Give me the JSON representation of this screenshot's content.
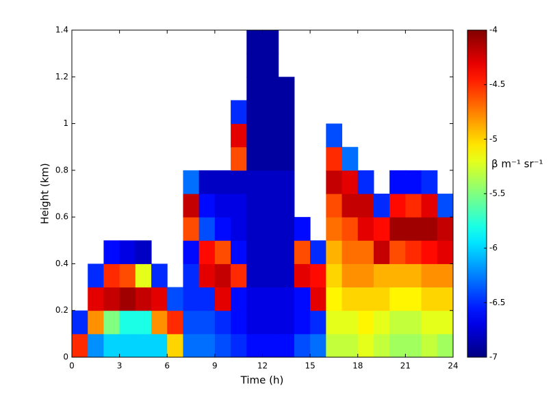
{
  "chart_data": {
    "type": "heatmap",
    "xlabel": "Time (h)",
    "ylabel": "Height (km)",
    "colorbar_label": "β m⁻¹ sr⁻¹",
    "x_bins": [
      0,
      1,
      2,
      3,
      4,
      5,
      6,
      7,
      8,
      9,
      10,
      11,
      12,
      13,
      14,
      15,
      16,
      17,
      18,
      19,
      20,
      21,
      22,
      23,
      24
    ],
    "y_bins": [
      0,
      0.1,
      0.2,
      0.3,
      0.4,
      0.5,
      0.6,
      0.7,
      0.8,
      0.9,
      1.0,
      1.1,
      1.2,
      1.3,
      1.4
    ],
    "xlim": [
      0,
      24
    ],
    "xticks": [
      0,
      3,
      6,
      9,
      12,
      15,
      18,
      21,
      24
    ],
    "ylim": [
      0,
      1.4
    ],
    "yticks": [
      0,
      0.2,
      0.4,
      0.6,
      0.8,
      1,
      1.2,
      1.4
    ],
    "clim": [
      -7,
      -4
    ],
    "cticks": [
      -7,
      -6.5,
      -6,
      -5.5,
      -5,
      -4.5,
      -4
    ],
    "colormap": "jet",
    "z": [
      [
        -4.5,
        -6.5,
        null,
        null,
        null,
        null,
        null,
        null,
        null,
        null,
        null,
        null,
        null,
        null
      ],
      [
        -6.2,
        -4.8,
        -4.3,
        -6.5,
        null,
        null,
        null,
        null,
        null,
        null,
        null,
        null,
        null,
        null
      ],
      [
        -6.0,
        -5.5,
        -4.2,
        -4.5,
        -6.6,
        null,
        null,
        null,
        null,
        null,
        null,
        null,
        null,
        null
      ],
      [
        -6.0,
        -5.8,
        -4.1,
        -4.6,
        -6.7,
        null,
        null,
        null,
        null,
        null,
        null,
        null,
        null,
        null
      ],
      [
        -6.0,
        -5.8,
        -4.2,
        -5.2,
        -6.8,
        null,
        null,
        null,
        null,
        null,
        null,
        null,
        null,
        null
      ],
      [
        -6.0,
        -4.8,
        -4.3,
        -6.5,
        null,
        null,
        null,
        null,
        null,
        null,
        null,
        null,
        null,
        null
      ],
      [
        -5.0,
        -4.5,
        -6.4,
        null,
        null,
        null,
        null,
        null,
        null,
        null,
        null,
        null,
        null,
        null
      ],
      [
        -6.3,
        -6.4,
        -6.5,
        -6.5,
        -6.6,
        -4.6,
        -4.2,
        -6.3,
        null,
        null,
        null,
        null,
        null,
        null
      ],
      [
        -6.3,
        -6.4,
        -6.5,
        -4.3,
        -4.4,
        -6.4,
        -6.6,
        -6.8,
        null,
        null,
        null,
        null,
        null,
        null
      ],
      [
        -6.4,
        -6.5,
        -4.3,
        -4.2,
        -4.6,
        -6.6,
        -6.7,
        -6.8,
        null,
        null,
        null,
        null,
        null,
        null
      ],
      [
        -6.5,
        -6.6,
        -6.6,
        -4.5,
        -6.6,
        -6.7,
        -6.7,
        -6.8,
        -4.6,
        -4.3,
        -6.5,
        null,
        null,
        null
      ],
      [
        -6.6,
        -6.7,
        -6.7,
        -6.8,
        -6.8,
        -6.8,
        -6.8,
        -6.8,
        -6.9,
        -6.9,
        -6.9,
        -6.9,
        -6.9,
        -6.9
      ],
      [
        -6.6,
        -6.7,
        -6.7,
        -6.8,
        -6.8,
        -6.8,
        -6.8,
        -6.8,
        -6.9,
        -6.9,
        -6.9,
        -6.9,
        -6.9,
        -6.9
      ],
      [
        -6.6,
        -6.7,
        -6.7,
        -6.8,
        -6.8,
        -6.8,
        -6.8,
        -6.8,
        -6.9,
        -6.9,
        -6.9,
        -6.9,
        null,
        null
      ],
      [
        -6.4,
        -6.6,
        -6.6,
        -4.3,
        -4.6,
        -6.6,
        null,
        null,
        null,
        null,
        null,
        null,
        null,
        null
      ],
      [
        -6.3,
        -6.5,
        -4.3,
        -4.4,
        -6.5,
        null,
        null,
        null,
        null,
        null,
        null,
        null,
        null,
        null
      ],
      [
        -5.3,
        -5.2,
        -5.1,
        -5.0,
        -4.9,
        -4.7,
        -4.6,
        -4.2,
        -4.5,
        -6.4,
        null,
        null,
        null,
        null
      ],
      [
        -5.3,
        -5.2,
        -5.0,
        -4.8,
        -4.7,
        -4.6,
        -4.2,
        -4.3,
        -6.3,
        null,
        null,
        null,
        null,
        null
      ],
      [
        -5.2,
        -5.1,
        -5.0,
        -4.8,
        -4.7,
        -4.3,
        -4.2,
        -6.5,
        null,
        null,
        null,
        null,
        null,
        null
      ],
      [
        -5.3,
        -5.2,
        -5.0,
        -4.9,
        -4.2,
        -4.4,
        -6.5,
        null,
        null,
        null,
        null,
        null,
        null,
        null
      ],
      [
        -5.4,
        -5.3,
        -5.1,
        -4.9,
        -4.6,
        -4.1,
        -4.4,
        -6.6,
        null,
        null,
        null,
        null,
        null,
        null
      ],
      [
        -5.4,
        -5.3,
        -5.1,
        -4.9,
        -4.5,
        -4.1,
        -4.5,
        -6.6,
        null,
        null,
        null,
        null,
        null,
        null
      ],
      [
        -5.3,
        -5.2,
        -5.0,
        -4.8,
        -4.4,
        -4.1,
        -4.3,
        -6.5,
        null,
        null,
        null,
        null,
        null,
        null
      ],
      [
        -5.4,
        -5.2,
        -5.0,
        -4.8,
        -4.3,
        -4.2,
        -6.4,
        null,
        null,
        null,
        null,
        null,
        null,
        null
      ]
    ]
  }
}
